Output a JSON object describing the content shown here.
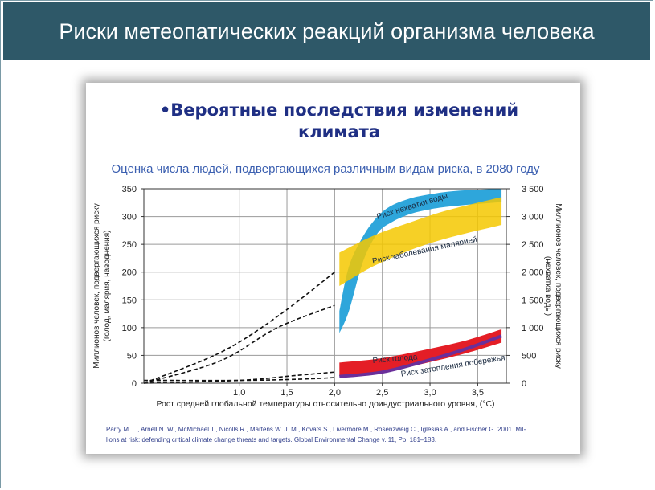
{
  "header": {
    "title": "Риски метеопатических реакций организма человека"
  },
  "slide": {
    "bullet": "•",
    "heading_line1": "Вероятные последствия изменений",
    "heading_line2": "климата"
  },
  "colors": {
    "header_bg": "#2e5868",
    "heading": "#1f2f84",
    "subtitle": "#3b5fb0",
    "water_band": "#2ea6db",
    "malaria_band": "#f5c800",
    "malaria_band_overlap": "#f7a51a",
    "hunger_band": "#e41e26",
    "coastal_line": "#6a2f9a"
  },
  "chart_data": {
    "type": "area",
    "title": "Оценка числа людей, подвергающихся различным видам риска, в 2080 году",
    "xlabel": "Рост средней глобальной температуры относительно доиндустриального уровня, (°С)",
    "ylabel_left_line1": "Миллионов человек, подвергающихся риску",
    "ylabel_left_line2": "(голод, малярия, наводнения)",
    "ylabel_right_line1": "Миллионов человек, подвергающихся риску",
    "ylabel_right_line2": "(нехватка воды)",
    "xlim": [
      0.0,
      3.8
    ],
    "ylim_left": [
      0,
      350
    ],
    "ylim_right": [
      0,
      3500
    ],
    "x_ticks": [
      1.0,
      1.5,
      2.0,
      2.5,
      3.0,
      3.5
    ],
    "x_tick_labels": [
      "1,0",
      "1,5",
      "2,0",
      "2,5",
      "3,0",
      "3,5"
    ],
    "y_left_ticks": [
      0,
      50,
      100,
      150,
      200,
      250,
      300,
      350
    ],
    "y_left_tick_labels": [
      "0",
      "50",
      "100",
      "150",
      "200",
      "250",
      "300",
      "350"
    ],
    "y_right_ticks": [
      0,
      500,
      1000,
      1500,
      2000,
      2500,
      3000,
      3500
    ],
    "y_right_tick_labels": [
      "0",
      "500",
      "1 000",
      "1 500",
      "2 000",
      "2 500",
      "3 000",
      "3 500"
    ],
    "grid": true,
    "series": [
      {
        "name": "Риск нехватки воды",
        "axis": "right",
        "color": "#2ea6db",
        "x": [
          2.05,
          2.15,
          2.3,
          2.45,
          2.6,
          2.8,
          3.0,
          3.2,
          3.45,
          3.75
        ],
        "lower": [
          900,
          1300,
          2200,
          2700,
          2900,
          3050,
          3130,
          3180,
          3220,
          3260
        ],
        "upper": [
          1300,
          2100,
          2650,
          3000,
          3200,
          3330,
          3400,
          3450,
          3480,
          3500
        ]
      },
      {
        "name": "Риск заболевания малярией",
        "axis": "left",
        "color": "#f5c800",
        "x": [
          2.05,
          2.4,
          2.8,
          3.2,
          3.75
        ],
        "lower": [
          175,
          210,
          240,
          262,
          285
        ],
        "upper": [
          235,
          265,
          290,
          312,
          335
        ]
      },
      {
        "name": "Риск голода",
        "axis": "left",
        "color": "#e41e26",
        "x": [
          2.05,
          2.5,
          3.0,
          3.4,
          3.75
        ],
        "lower": [
          13,
          20,
          38,
          55,
          73
        ],
        "upper": [
          37,
          45,
          62,
          78,
          97
        ]
      },
      {
        "name": "Риск затопления побережья",
        "axis": "left",
        "color": "#6a2f9a",
        "x": [
          2.05,
          2.5,
          3.0,
          3.4,
          3.75
        ],
        "values": [
          12,
          20,
          42,
          63,
          85
        ]
      }
    ],
    "projections": [
      {
        "target": "Риск заболевания малярией",
        "x": [
          0.0,
          0.8,
          1.4,
          2.0
        ],
        "y": [
          0,
          55,
          120,
          200
        ]
      },
      {
        "target": "Риск нехватки воды",
        "axis": "right",
        "x": [
          0.0,
          0.8,
          1.4,
          2.0
        ],
        "y": [
          0,
          400,
          1000,
          1400
        ]
      },
      {
        "target": "Риск голода",
        "x": [
          0.0,
          1.0,
          1.6,
          2.0
        ],
        "y": [
          0,
          5,
          14,
          20
        ]
      },
      {
        "target": "Риск затопления побережья",
        "x": [
          0.0,
          1.0,
          1.6,
          2.0
        ],
        "y": [
          5,
          5,
          7,
          10
        ]
      }
    ]
  },
  "citation": {
    "line1": "Parry M. L., Arnell N. W., McMichael T., Nicolls R., Martens W. J. M., Kovats S., Livermore M., Rosenzweig C., Iglesias A., and Fischer G. 2001. Mil-",
    "line2": "lions at risk: defending critical climate change threats and targets. Global Environmental Change v. 11, Pp. 181–183."
  }
}
